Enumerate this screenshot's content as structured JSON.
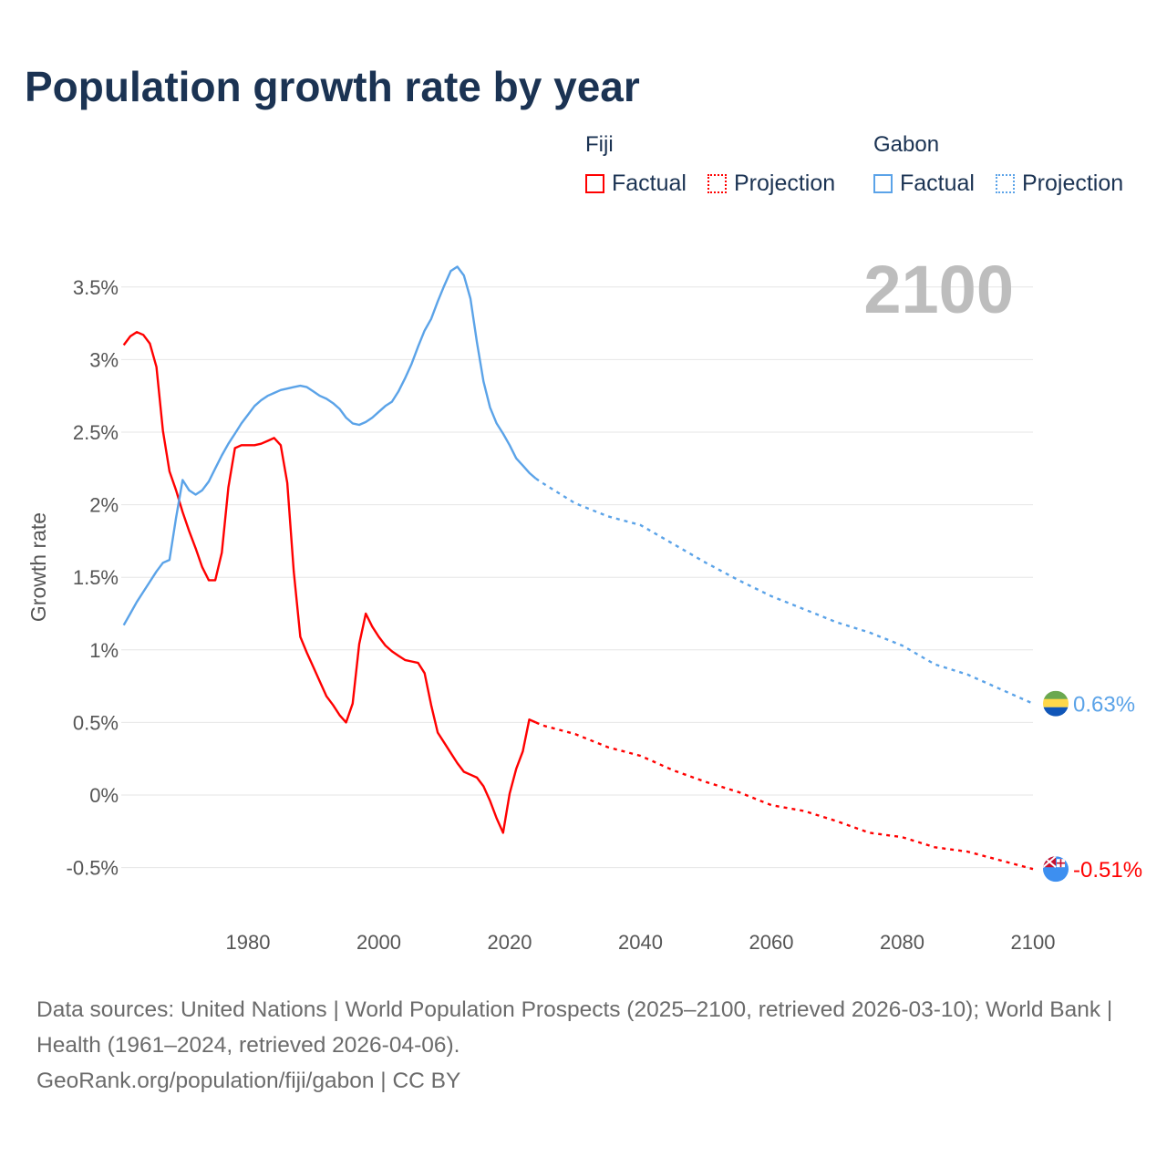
{
  "title": "Population growth rate by year",
  "legend": {
    "groups": [
      {
        "name": "Fiji",
        "color": "#ff0000",
        "factual_label": "Factual",
        "projection_label": "Projection"
      },
      {
        "name": "Gabon",
        "color": "#5ba3e8",
        "factual_label": "Factual",
        "projection_label": "Projection"
      }
    ]
  },
  "year_display": "2100",
  "footer": {
    "sources": "Data sources: United Nations | World Population Prospects (2025–2100, retrieved 2026-03-10); World Bank | Health (1961–2024, retrieved 2026-04-06).",
    "credit": "GeoRank.org/population/fiji/gabon | CC BY"
  },
  "chart_data": {
    "type": "line",
    "title": "Population growth rate by year",
    "xlabel": "",
    "ylabel": "Growth rate",
    "xlim": [
      1961,
      2100
    ],
    "ylim": [
      -0.5,
      3.5
    ],
    "x_ticks": [
      1980,
      2000,
      2020,
      2040,
      2060,
      2080,
      2100
    ],
    "y_ticks": [
      -0.5,
      0,
      0.5,
      1,
      1.5,
      2,
      2.5,
      3,
      3.5
    ],
    "y_tick_labels": [
      "-0.5%",
      "0%",
      "0.5%",
      "1%",
      "1.5%",
      "2%",
      "2.5%",
      "3%",
      "3.5%"
    ],
    "grid": true,
    "legend_position": "top-right",
    "series": [
      {
        "name": "Fiji Factual",
        "country": "Fiji",
        "kind": "factual",
        "color": "#ff0000",
        "x": [
          1961,
          1962,
          1963,
          1964,
          1965,
          1966,
          1967,
          1968,
          1969,
          1970,
          1971,
          1972,
          1973,
          1974,
          1975,
          1976,
          1977,
          1978,
          1979,
          1980,
          1981,
          1982,
          1983,
          1984,
          1985,
          1986,
          1987,
          1988,
          1989,
          1990,
          1991,
          1992,
          1993,
          1994,
          1995,
          1996,
          1997,
          1998,
          1999,
          2000,
          2001,
          2002,
          2003,
          2004,
          2005,
          2006,
          2007,
          2008,
          2009,
          2010,
          2011,
          2012,
          2013,
          2014,
          2015,
          2016,
          2017,
          2018,
          2019,
          2020,
          2021,
          2022,
          2023,
          2024
        ],
        "y": [
          3.1,
          3.16,
          3.19,
          3.17,
          3.11,
          2.95,
          2.51,
          2.23,
          2.1,
          1.95,
          1.82,
          1.7,
          1.57,
          1.48,
          1.48,
          1.67,
          2.12,
          2.39,
          2.41,
          2.41,
          2.41,
          2.42,
          2.44,
          2.46,
          2.41,
          2.15,
          1.54,
          1.09,
          0.98,
          0.88,
          0.78,
          0.68,
          0.62,
          0.55,
          0.5,
          0.63,
          1.04,
          1.25,
          1.16,
          1.09,
          1.03,
          0.99,
          0.96,
          0.93,
          0.92,
          0.91,
          0.84,
          0.62,
          0.43,
          0.36,
          0.29,
          0.22,
          0.16,
          0.14,
          0.12,
          0.06,
          -0.04,
          -0.16,
          -0.26,
          0.01,
          0.18,
          0.3,
          0.52,
          0.5
        ]
      },
      {
        "name": "Fiji Projection",
        "country": "Fiji",
        "kind": "projection",
        "color": "#ff0000",
        "x": [
          2024,
          2025,
          2030,
          2035,
          2040,
          2045,
          2050,
          2055,
          2060,
          2065,
          2070,
          2075,
          2080,
          2085,
          2090,
          2095,
          2100
        ],
        "y": [
          0.5,
          0.48,
          0.42,
          0.33,
          0.27,
          0.17,
          0.09,
          0.02,
          -0.07,
          -0.11,
          -0.18,
          -0.26,
          -0.29,
          -0.36,
          -0.39,
          -0.45,
          -0.51
        ]
      },
      {
        "name": "Gabon Factual",
        "country": "Gabon",
        "kind": "factual",
        "color": "#5ba3e8",
        "x": [
          1961,
          1962,
          1963,
          1964,
          1965,
          1966,
          1967,
          1968,
          1969,
          1970,
          1971,
          1972,
          1973,
          1974,
          1975,
          1976,
          1977,
          1978,
          1979,
          1980,
          1981,
          1982,
          1983,
          1984,
          1985,
          1986,
          1987,
          1988,
          1989,
          1990,
          1991,
          1992,
          1993,
          1994,
          1995,
          1996,
          1997,
          1998,
          1999,
          2000,
          2001,
          2002,
          2003,
          2004,
          2005,
          2006,
          2007,
          2008,
          2009,
          2010,
          2011,
          2012,
          2013,
          2014,
          2015,
          2016,
          2017,
          2018,
          2019,
          2020,
          2021,
          2022,
          2023,
          2024
        ],
        "y": [
          1.17,
          1.25,
          1.33,
          1.4,
          1.47,
          1.54,
          1.6,
          1.62,
          1.91,
          2.17,
          2.1,
          2.07,
          2.1,
          2.16,
          2.25,
          2.34,
          2.42,
          2.49,
          2.56,
          2.62,
          2.68,
          2.72,
          2.75,
          2.77,
          2.79,
          2.8,
          2.81,
          2.82,
          2.81,
          2.78,
          2.75,
          2.73,
          2.7,
          2.66,
          2.6,
          2.56,
          2.55,
          2.57,
          2.6,
          2.64,
          2.68,
          2.71,
          2.78,
          2.87,
          2.97,
          3.09,
          3.2,
          3.28,
          3.4,
          3.51,
          3.61,
          3.64,
          3.58,
          3.42,
          3.12,
          2.85,
          2.67,
          2.56,
          2.49,
          2.41,
          2.32,
          2.27,
          2.22,
          2.18
        ]
      },
      {
        "name": "Gabon Projection",
        "country": "Gabon",
        "kind": "projection",
        "color": "#5ba3e8",
        "x": [
          2024,
          2025,
          2030,
          2035,
          2040,
          2045,
          2050,
          2055,
          2060,
          2065,
          2070,
          2075,
          2080,
          2085,
          2090,
          2095,
          2100
        ],
        "y": [
          2.18,
          2.15,
          2.01,
          1.92,
          1.86,
          1.73,
          1.6,
          1.48,
          1.37,
          1.28,
          1.19,
          1.12,
          1.03,
          0.9,
          0.83,
          0.73,
          0.63
        ]
      }
    ],
    "end_labels": [
      {
        "country": "Gabon",
        "value": 0.63,
        "text": "0.63%",
        "color": "#5ba3e8",
        "flag": "gabon-flag"
      },
      {
        "country": "Fiji",
        "value": -0.51,
        "text": "-0.51%",
        "color": "#ff0000",
        "flag": "fiji-flag"
      }
    ]
  }
}
